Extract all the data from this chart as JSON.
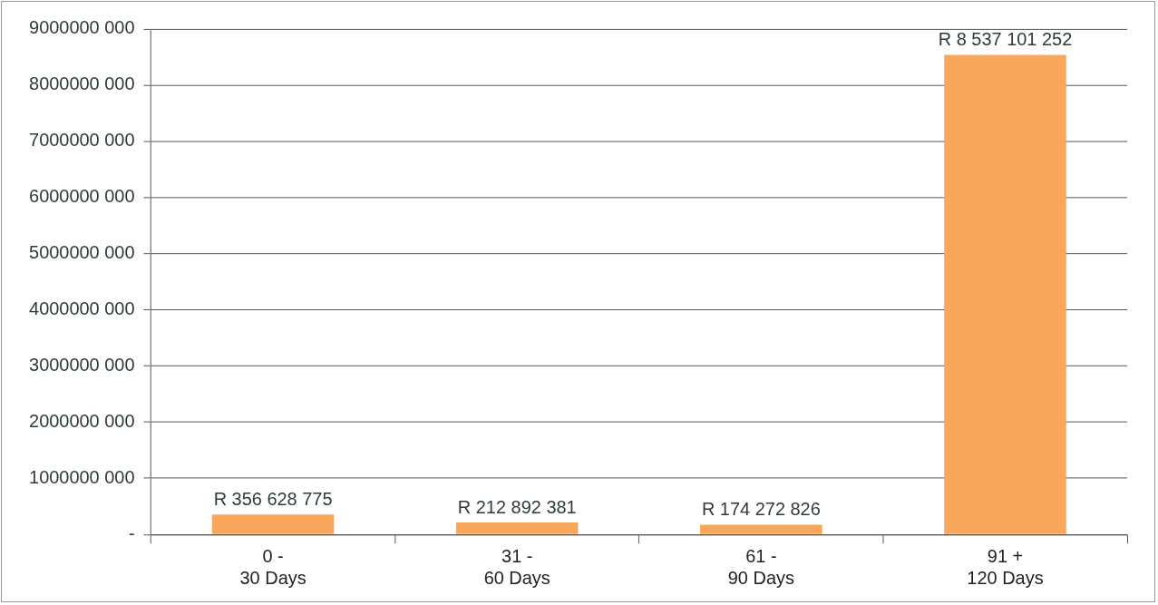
{
  "chart_data": {
    "type": "bar",
    "categories": [
      "0 -\n30 Days",
      "31 -\n60 Days",
      "61 -\n90 Days",
      "91 +\n120 Days"
    ],
    "values": [
      356628775,
      212892381,
      174272826,
      8537101252
    ],
    "value_labels": [
      "R 356 628 775",
      "R 212 892 381",
      "R 174 272 826",
      "R 8 537 101 252"
    ],
    "color": "#f9a85b",
    "ylim": [
      0,
      9000000000
    ],
    "yticks": [
      {
        "value": 0,
        "label": "-"
      },
      {
        "value": 1000000000,
        "label": "1000000 000"
      },
      {
        "value": 2000000000,
        "label": "2000000 000"
      },
      {
        "value": 3000000000,
        "label": "3000000 000"
      },
      {
        "value": 4000000000,
        "label": "4000000 000"
      },
      {
        "value": 5000000000,
        "label": "5000000 000"
      },
      {
        "value": 6000000000,
        "label": "6000000 000"
      },
      {
        "value": 7000000000,
        "label": "7000000 000"
      },
      {
        "value": 8000000000,
        "label": "8000000 000"
      },
      {
        "value": 9000000000,
        "label": "9000000 000"
      }
    ],
    "grid": "y",
    "legend": false
  }
}
